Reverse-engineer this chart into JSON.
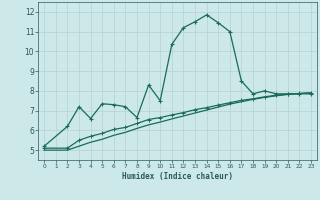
{
  "xlabel": "Humidex (Indice chaleur)",
  "bg_color": "#cce8e8",
  "grid_color": "#b8d4d4",
  "line_color": "#1a6b5a",
  "xlim": [
    -0.5,
    23.5
  ],
  "ylim": [
    4.5,
    12.5
  ],
  "yticks": [
    5,
    6,
    7,
    8,
    9,
    10,
    11,
    12
  ],
  "xticks": [
    0,
    1,
    2,
    3,
    4,
    5,
    6,
    7,
    8,
    9,
    10,
    11,
    12,
    13,
    14,
    15,
    16,
    17,
    18,
    19,
    20,
    21,
    22,
    23
  ],
  "series1_x": [
    0,
    2,
    3,
    4,
    5,
    6,
    7,
    8,
    9,
    10,
    11,
    12,
    13,
    14,
    15,
    16,
    17,
    18,
    19,
    20,
    21,
    22,
    23
  ],
  "series1_y": [
    5.2,
    6.2,
    7.2,
    6.6,
    7.35,
    7.3,
    7.2,
    6.65,
    8.3,
    7.5,
    10.35,
    11.2,
    11.5,
    11.85,
    11.45,
    11.0,
    8.5,
    7.85,
    8.0,
    7.85,
    7.85,
    7.85,
    7.85
  ],
  "series2_x": [
    0,
    2,
    3,
    4,
    5,
    6,
    7,
    8,
    9,
    10,
    11,
    12,
    13,
    14,
    15,
    16,
    17,
    18,
    19,
    20,
    21,
    22,
    23
  ],
  "series2_y": [
    5.1,
    5.1,
    5.5,
    5.7,
    5.85,
    6.05,
    6.15,
    6.35,
    6.55,
    6.65,
    6.78,
    6.9,
    7.05,
    7.15,
    7.28,
    7.4,
    7.52,
    7.6,
    7.7,
    7.78,
    7.83,
    7.87,
    7.9
  ],
  "series3_x": [
    0,
    2,
    3,
    4,
    5,
    6,
    7,
    8,
    9,
    10,
    11,
    12,
    13,
    14,
    15,
    16,
    17,
    18,
    19,
    20,
    21,
    22,
    23
  ],
  "series3_y": [
    5.0,
    5.0,
    5.2,
    5.4,
    5.55,
    5.75,
    5.9,
    6.1,
    6.28,
    6.42,
    6.58,
    6.73,
    6.88,
    7.03,
    7.18,
    7.33,
    7.45,
    7.57,
    7.67,
    7.75,
    7.82,
    7.86,
    7.9
  ]
}
